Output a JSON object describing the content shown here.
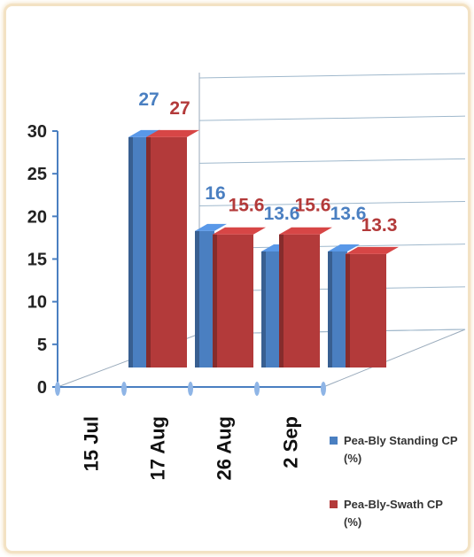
{
  "chart_data": {
    "type": "bar3d",
    "categories": [
      "15 Jul",
      "17 Aug",
      "26 Aug",
      "2 Sep"
    ],
    "series": [
      {
        "name": "Pea-Bly Standing CP (%)",
        "color": "#4a7fc1",
        "values": [
          27,
          16,
          13.6,
          13.6
        ]
      },
      {
        "name": "Pea-Bly-Swath CP (%)",
        "color": "#b33a3a",
        "values": [
          27,
          15.6,
          15.6,
          13.3
        ]
      }
    ],
    "ylim": [
      0,
      30
    ],
    "yticks": [
      0,
      5,
      10,
      15,
      20,
      25,
      30
    ],
    "grid": true
  }
}
